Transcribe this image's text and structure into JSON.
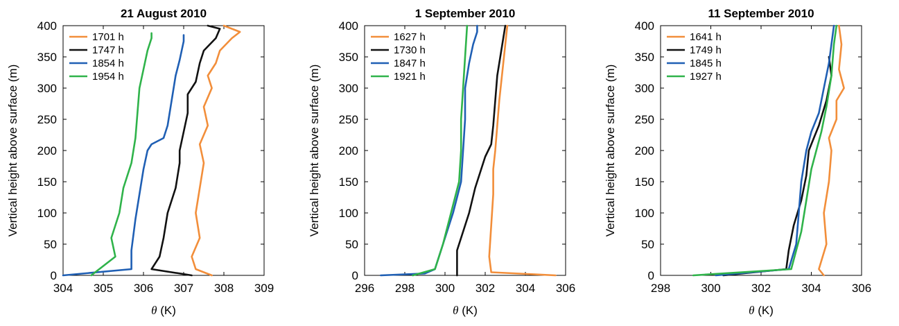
{
  "chart_data": [
    {
      "type": "line",
      "title": "21 August 2010",
      "xlabel_symbol": "θ",
      "xlabel_unit": "(K)",
      "ylabel": "Vertical height above surface (m)",
      "xlim": [
        304,
        309
      ],
      "ylim": [
        0,
        400
      ],
      "xticks": [
        304,
        305,
        306,
        307,
        308,
        309
      ],
      "yticks": [
        0,
        50,
        100,
        150,
        200,
        250,
        300,
        350,
        400
      ],
      "legend_position": "top-left",
      "series": [
        {
          "name": "1701 h",
          "color": "#f28e3a",
          "x": [
            307.7,
            307.3,
            307.2,
            307.4,
            307.3,
            307.4,
            307.5,
            307.4,
            307.6,
            307.5,
            307.7,
            307.6,
            307.8,
            307.9,
            308.2,
            308.4,
            308.0
          ],
          "y": [
            0,
            10,
            30,
            60,
            100,
            140,
            180,
            210,
            240,
            270,
            300,
            320,
            340,
            360,
            380,
            390,
            400
          ]
        },
        {
          "name": "1747 h",
          "color": "#111111",
          "x": [
            307.2,
            306.2,
            306.4,
            306.5,
            306.6,
            306.8,
            306.9,
            306.9,
            307.0,
            307.1,
            307.1,
            307.3,
            307.4,
            307.5,
            307.8,
            307.9,
            307.6
          ],
          "y": [
            0,
            10,
            30,
            60,
            100,
            140,
            180,
            200,
            230,
            260,
            290,
            310,
            340,
            360,
            380,
            395,
            400
          ]
        },
        {
          "name": "1854 h",
          "color": "#1f5fb4",
          "x": [
            304.0,
            305.7,
            305.7,
            305.8,
            305.9,
            306.0,
            306.1,
            306.2,
            306.5,
            306.6,
            306.7,
            306.8,
            306.9,
            307.0,
            307.0
          ],
          "y": [
            0,
            10,
            40,
            90,
            130,
            170,
            200,
            210,
            220,
            240,
            280,
            320,
            345,
            375,
            385
          ]
        },
        {
          "name": "1954 h",
          "color": "#2fb34a",
          "x": [
            304.7,
            305.3,
            305.2,
            305.4,
            305.5,
            305.7,
            305.8,
            305.85,
            305.9,
            306.0,
            306.1,
            306.2,
            306.2
          ],
          "y": [
            0,
            30,
            60,
            100,
            140,
            180,
            220,
            260,
            300,
            330,
            360,
            380,
            388
          ]
        }
      ]
    },
    {
      "type": "line",
      "title": "1 September 2010",
      "xlabel_symbol": "θ",
      "xlabel_unit": "(K)",
      "ylabel": "Vertical height above surface (m)",
      "xlim": [
        296,
        306
      ],
      "ylim": [
        0,
        400
      ],
      "xticks": [
        296,
        298,
        300,
        302,
        304,
        306
      ],
      "yticks": [
        0,
        50,
        100,
        150,
        200,
        250,
        300,
        350,
        400
      ],
      "legend_position": "top-left",
      "series": [
        {
          "name": "1627 h",
          "color": "#f28e3a",
          "x": [
            305.5,
            302.3,
            302.2,
            302.3,
            302.4,
            302.4,
            302.5,
            302.6,
            302.7,
            302.8,
            302.9,
            303.0,
            303.1
          ],
          "y": [
            0,
            5,
            30,
            80,
            130,
            170,
            200,
            240,
            280,
            310,
            340,
            370,
            400
          ]
        },
        {
          "name": "1730 h",
          "color": "#111111",
          "x": [
            300.6,
            300.6,
            300.9,
            301.2,
            301.5,
            301.8,
            302.0,
            302.3,
            302.4,
            302.5,
            302.6,
            302.8,
            303.0
          ],
          "y": [
            0,
            40,
            70,
            100,
            140,
            170,
            190,
            210,
            240,
            280,
            320,
            360,
            400
          ]
        },
        {
          "name": "1847 h",
          "color": "#1f5fb4",
          "x": [
            296.8,
            299.0,
            299.5,
            299.9,
            300.4,
            300.8,
            300.9,
            301.0,
            301.0,
            301.2,
            301.4,
            301.6,
            301.6
          ],
          "y": [
            0,
            3,
            10,
            50,
            100,
            150,
            200,
            250,
            300,
            340,
            370,
            390,
            400
          ]
        },
        {
          "name": "1921 h",
          "color": "#2fb34a",
          "x": [
            298.4,
            299.5,
            299.9,
            300.3,
            300.7,
            300.8,
            300.8,
            300.9,
            301.0,
            301.1
          ],
          "y": [
            0,
            10,
            50,
            100,
            150,
            200,
            250,
            300,
            350,
            400
          ]
        }
      ]
    },
    {
      "type": "line",
      "title": "11 September 2010",
      "xlabel_symbol": "θ",
      "xlabel_unit": "(K)",
      "ylabel": "Vertical height above surface (m)",
      "xlim": [
        298,
        306
      ],
      "ylim": [
        0,
        400
      ],
      "xticks": [
        298,
        300,
        302,
        304,
        306
      ],
      "yticks": [
        0,
        50,
        100,
        150,
        200,
        250,
        300,
        350,
        400
      ],
      "legend_position": "top-left",
      "series": [
        {
          "name": "1641 h",
          "color": "#f28e3a",
          "x": [
            304.5,
            304.3,
            304.6,
            304.5,
            304.7,
            304.8,
            304.7,
            305.0,
            305.0,
            305.3,
            305.1,
            305.2,
            305.1
          ],
          "y": [
            0,
            10,
            50,
            100,
            150,
            200,
            220,
            250,
            280,
            300,
            330,
            370,
            400
          ]
        },
        {
          "name": "1749 h",
          "color": "#111111",
          "x": [
            300.5,
            303.0,
            303.1,
            303.3,
            303.6,
            303.8,
            303.9,
            304.1,
            304.3,
            304.6,
            304.8,
            304.7
          ],
          "y": [
            0,
            10,
            40,
            80,
            120,
            160,
            200,
            220,
            240,
            280,
            320,
            350
          ]
        },
        {
          "name": "1845 h",
          "color": "#1f5fb4",
          "x": [
            300.2,
            303.1,
            303.4,
            303.5,
            303.6,
            303.8,
            304.0,
            304.3,
            304.5,
            304.7,
            304.8,
            304.9
          ],
          "y": [
            0,
            10,
            50,
            100,
            150,
            200,
            230,
            260,
            300,
            340,
            370,
            400
          ]
        },
        {
          "name": "1927 h",
          "color": "#2fb34a",
          "x": [
            299.3,
            303.2,
            303.4,
            303.6,
            303.8,
            304.0,
            304.2,
            304.4,
            304.6,
            304.8,
            304.9,
            305.0
          ],
          "y": [
            0,
            10,
            40,
            70,
            120,
            170,
            200,
            230,
            270,
            320,
            370,
            400
          ]
        }
      ]
    }
  ]
}
